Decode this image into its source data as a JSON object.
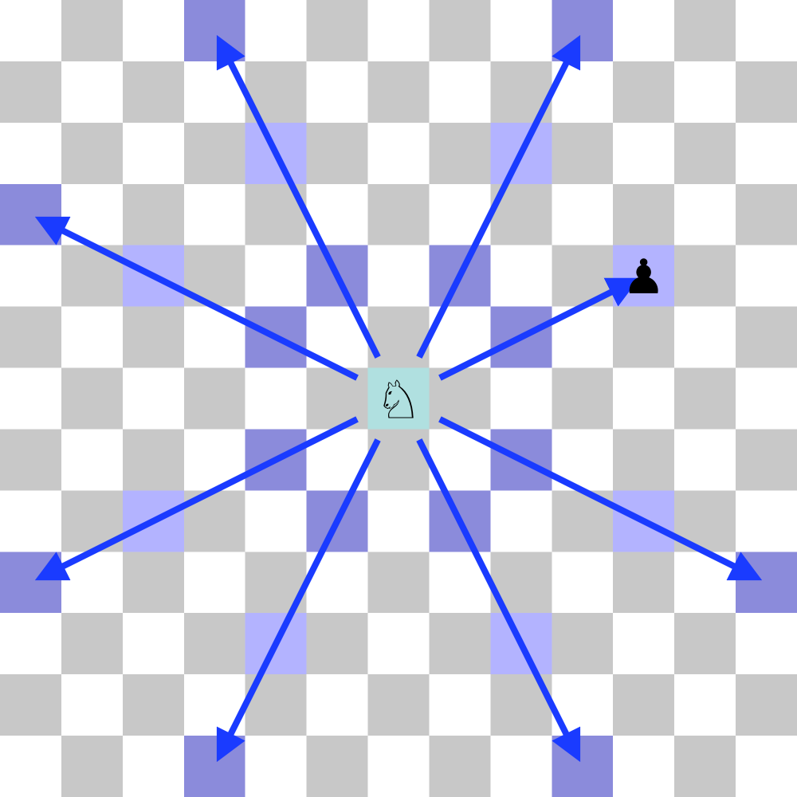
{
  "board": {
    "files": 13,
    "ranks": 13,
    "colors": {
      "light": "#ffffff",
      "dark": "#c8c8c8",
      "highlight_strong": "#8b8bdb",
      "highlight_soft": "#b3b3ff",
      "origin": "#b0e0e0",
      "arrow": "#1a3bff"
    }
  },
  "pieces": [
    {
      "name": "white-knight-piece",
      "type": "knight",
      "color": "white",
      "glyph": "♘",
      "square": [
        6,
        6
      ]
    },
    {
      "name": "black-pawn-piece",
      "type": "pawn",
      "color": "black",
      "glyph": "♟",
      "square": [
        10,
        4
      ]
    }
  ],
  "highlights": {
    "origin": [
      [
        6,
        6
      ]
    ],
    "strong": [
      [
        3,
        0
      ],
      [
        9,
        0
      ],
      [
        0,
        3
      ],
      [
        5,
        4
      ],
      [
        7,
        4
      ],
      [
        4,
        5
      ],
      [
        8,
        5
      ],
      [
        4,
        7
      ],
      [
        8,
        7
      ],
      [
        5,
        8
      ],
      [
        7,
        8
      ],
      [
        0,
        9
      ],
      [
        12,
        9
      ],
      [
        3,
        12
      ],
      [
        9,
        12
      ]
    ],
    "soft": [
      [
        4,
        2
      ],
      [
        8,
        2
      ],
      [
        2,
        4
      ],
      [
        10,
        4
      ],
      [
        2,
        8
      ],
      [
        10,
        8
      ],
      [
        4,
        10
      ],
      [
        8,
        10
      ]
    ]
  },
  "arrows": [
    {
      "name": "arrow-to-upper-left-far",
      "from": [
        6,
        6
      ],
      "to": [
        3,
        0
      ]
    },
    {
      "name": "arrow-to-upper-right-far",
      "from": [
        6,
        6
      ],
      "to": [
        9,
        0
      ]
    },
    {
      "name": "arrow-to-left-up-far",
      "from": [
        6,
        6
      ],
      "to": [
        0,
        3
      ]
    },
    {
      "name": "arrow-to-pawn",
      "from": [
        6,
        6
      ],
      "to": [
        10,
        4
      ]
    },
    {
      "name": "arrow-to-left-down-far",
      "from": [
        6,
        6
      ],
      "to": [
        0,
        9
      ]
    },
    {
      "name": "arrow-to-right-down-far",
      "from": [
        6,
        6
      ],
      "to": [
        12,
        9
      ]
    },
    {
      "name": "arrow-to-lower-left-far",
      "from": [
        6,
        6
      ],
      "to": [
        3,
        12
      ]
    },
    {
      "name": "arrow-to-lower-right-far",
      "from": [
        6,
        6
      ],
      "to": [
        9,
        12
      ]
    }
  ]
}
